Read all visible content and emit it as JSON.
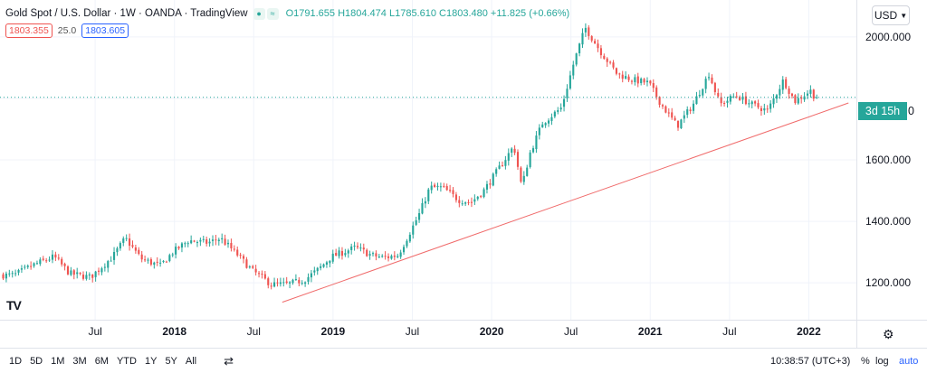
{
  "header": {
    "title": "Gold Spot / U.S. Dollar · 1W · OANDA · TradingView",
    "ohlc": {
      "o": "O1791.655",
      "h": "H1804.474",
      "l": "L1785.610",
      "c": "C1803.480",
      "change": "+11.825 (+0.66%)"
    },
    "bid": "1803.355",
    "spread": "25.0",
    "ask": "1803.605",
    "currency": "USD"
  },
  "countdown": {
    "label": "3d 15h",
    "edge": "0"
  },
  "bottom_bar": {
    "timeframes": [
      "1D",
      "5D",
      "1M",
      "3M",
      "6M",
      "YTD",
      "1Y",
      "5Y",
      "All"
    ],
    "clock": "10:38:57 (UTC+3)",
    "percent": "%",
    "log": "log",
    "auto": "auto"
  },
  "colors": {
    "up": "#26a69a",
    "down": "#ef5350",
    "trend": "#f06b6b",
    "grid": "#f0f3fa"
  },
  "icons": [
    "eye-icon",
    "waves-icon",
    "caret-down-icon",
    "tradingview-logo-icon",
    "calendar-range-icon",
    "gear-icon"
  ],
  "chart_data": {
    "type": "candlestick",
    "ylim": [
      1080,
      2120
    ],
    "yticks": [
      1200,
      1400,
      1600,
      1800,
      2000
    ],
    "ytick_labels": [
      "1200.000",
      "1400.000",
      "1600.000",
      "",
      "2000.000"
    ],
    "xlim": [
      2016.9,
      2022.3
    ],
    "xticks": [
      {
        "x": 2017.5,
        "label": "Jul"
      },
      {
        "x": 2018.0,
        "label": "2018"
      },
      {
        "x": 2018.5,
        "label": "Jul"
      },
      {
        "x": 2019.0,
        "label": "2019"
      },
      {
        "x": 2019.5,
        "label": "Jul"
      },
      {
        "x": 2020.0,
        "label": "2020"
      },
      {
        "x": 2020.5,
        "label": "Jul"
      },
      {
        "x": 2021.0,
        "label": "2021"
      },
      {
        "x": 2021.5,
        "label": "Jul"
      },
      {
        "x": 2022.0,
        "label": "2022"
      }
    ],
    "anchors": [
      [
        2016.92,
        1225
      ],
      [
        2017.0,
        1225
      ],
      [
        2017.12,
        1258
      ],
      [
        2017.25,
        1285
      ],
      [
        2017.35,
        1230
      ],
      [
        2017.48,
        1218
      ],
      [
        2017.62,
        1285
      ],
      [
        2017.7,
        1345
      ],
      [
        2017.8,
        1278
      ],
      [
        2017.92,
        1255
      ],
      [
        2018.0,
        1300
      ],
      [
        2018.1,
        1338
      ],
      [
        2018.22,
        1330
      ],
      [
        2018.3,
        1345
      ],
      [
        2018.4,
        1295
      ],
      [
        2018.5,
        1240
      ],
      [
        2018.62,
        1195
      ],
      [
        2018.72,
        1195
      ],
      [
        2018.83,
        1210
      ],
      [
        2018.92,
        1245
      ],
      [
        2019.0,
        1285
      ],
      [
        2019.15,
        1315
      ],
      [
        2019.25,
        1290
      ],
      [
        2019.33,
        1282
      ],
      [
        2019.42,
        1290
      ],
      [
        2019.48,
        1350
      ],
      [
        2019.55,
        1420
      ],
      [
        2019.62,
        1510
      ],
      [
        2019.7,
        1510
      ],
      [
        2019.8,
        1470
      ],
      [
        2019.88,
        1462
      ],
      [
        2019.96,
        1500
      ],
      [
        2020.04,
        1560
      ],
      [
        2020.15,
        1645
      ],
      [
        2020.2,
        1510
      ],
      [
        2020.25,
        1620
      ],
      [
        2020.33,
        1720
      ],
      [
        2020.45,
        1770
      ],
      [
        2020.53,
        1920
      ],
      [
        2020.6,
        2030
      ],
      [
        2020.7,
        1950
      ],
      [
        2020.8,
        1880
      ],
      [
        2020.9,
        1860
      ],
      [
        2021.0,
        1850
      ],
      [
        2021.08,
        1780
      ],
      [
        2021.18,
        1710
      ],
      [
        2021.28,
        1780
      ],
      [
        2021.38,
        1880
      ],
      [
        2021.45,
        1780
      ],
      [
        2021.55,
        1810
      ],
      [
        2021.65,
        1780
      ],
      [
        2021.75,
        1760
      ],
      [
        2021.85,
        1860
      ],
      [
        2021.92,
        1790
      ],
      [
        2022.02,
        1825
      ],
      [
        2022.05,
        1803
      ]
    ],
    "candle_count": 265,
    "last_close": 1803.48,
    "trendline": [
      [
        2018.68,
        1137
      ],
      [
        2022.25,
        1785
      ]
    ],
    "current_price_line": 1803.48
  }
}
